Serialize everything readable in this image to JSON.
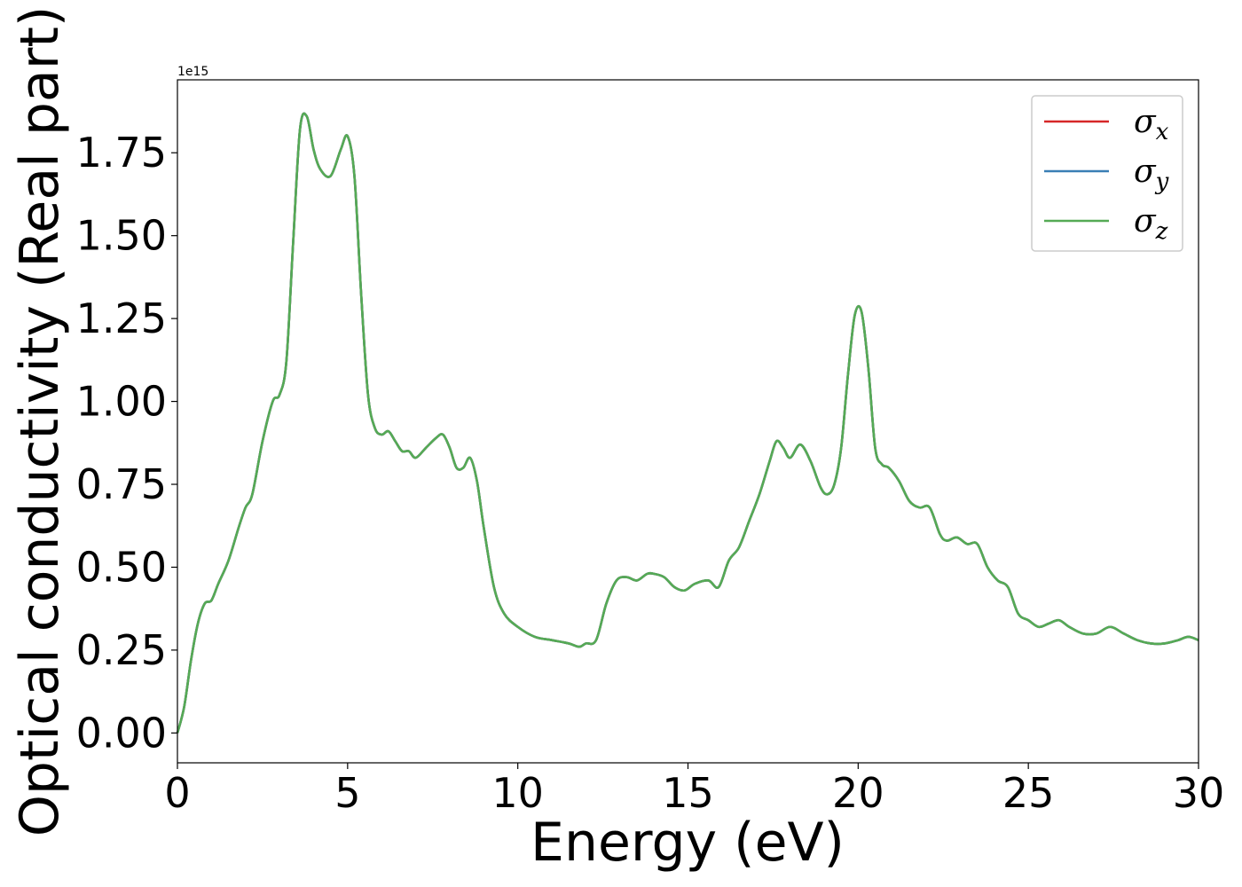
{
  "chart_data": {
    "type": "line",
    "title": "",
    "xlabel": "Energy (eV)",
    "ylabel": "Optical conductivity (Real part)",
    "y_offset_text": "1e15",
    "xlim": [
      0,
      30
    ],
    "ylim": [
      -0.09,
      1.97
    ],
    "xticks": [
      0,
      5,
      10,
      15,
      20,
      25,
      30
    ],
    "xtick_labels": [
      "0",
      "5",
      "10",
      "15",
      "20",
      "25",
      "30"
    ],
    "yticks": [
      0.0,
      0.25,
      0.5,
      0.75,
      1.0,
      1.25,
      1.5,
      1.75
    ],
    "ytick_labels": [
      "0.00",
      "0.25",
      "0.50",
      "0.75",
      "1.00",
      "1.25",
      "1.50",
      "1.75"
    ],
    "grid": false,
    "legend_position": "top-right",
    "x": [
      0,
      0.2,
      0.4,
      0.6,
      0.8,
      1.0,
      1.2,
      1.5,
      1.8,
      2.0,
      2.2,
      2.5,
      2.8,
      3.0,
      3.2,
      3.4,
      3.6,
      3.8,
      4.0,
      4.2,
      4.5,
      4.8,
      5.0,
      5.2,
      5.4,
      5.6,
      5.8,
      6.0,
      6.2,
      6.4,
      6.6,
      6.8,
      7.0,
      7.3,
      7.6,
      7.8,
      8.0,
      8.2,
      8.4,
      8.6,
      8.8,
      9.0,
      9.3,
      9.6,
      10.0,
      10.5,
      11.0,
      11.5,
      11.8,
      12.0,
      12.3,
      12.6,
      12.9,
      13.2,
      13.5,
      13.8,
      14.0,
      14.3,
      14.6,
      14.9,
      15.2,
      15.6,
      15.9,
      16.2,
      16.5,
      16.8,
      17.1,
      17.4,
      17.6,
      17.8,
      18.0,
      18.3,
      18.6,
      18.9,
      19.1,
      19.3,
      19.5,
      19.7,
      19.9,
      20.1,
      20.3,
      20.5,
      20.7,
      20.9,
      21.2,
      21.5,
      21.8,
      22.1,
      22.4,
      22.6,
      22.9,
      23.2,
      23.5,
      23.8,
      24.1,
      24.4,
      24.7,
      25.0,
      25.3,
      25.6,
      25.9,
      26.2,
      26.6,
      27.0,
      27.4,
      27.8,
      28.2,
      28.6,
      29.0,
      29.4,
      29.7,
      30.0
    ],
    "series": [
      {
        "name": "σ_x",
        "symbol": "σ",
        "subscript": "x",
        "color": "#d62728",
        "values": [
          0.0,
          0.08,
          0.22,
          0.33,
          0.39,
          0.4,
          0.45,
          0.52,
          0.62,
          0.68,
          0.72,
          0.88,
          1.0,
          1.02,
          1.12,
          1.48,
          1.82,
          1.86,
          1.76,
          1.7,
          1.68,
          1.76,
          1.8,
          1.68,
          1.32,
          1.02,
          0.92,
          0.9,
          0.91,
          0.88,
          0.85,
          0.85,
          0.83,
          0.86,
          0.89,
          0.9,
          0.86,
          0.8,
          0.8,
          0.83,
          0.76,
          0.62,
          0.44,
          0.36,
          0.32,
          0.29,
          0.28,
          0.27,
          0.26,
          0.27,
          0.28,
          0.39,
          0.46,
          0.47,
          0.46,
          0.48,
          0.48,
          0.47,
          0.44,
          0.43,
          0.45,
          0.46,
          0.44,
          0.52,
          0.56,
          0.64,
          0.72,
          0.82,
          0.88,
          0.86,
          0.83,
          0.87,
          0.82,
          0.74,
          0.72,
          0.75,
          0.86,
          1.08,
          1.26,
          1.27,
          1.1,
          0.86,
          0.81,
          0.8,
          0.76,
          0.7,
          0.68,
          0.68,
          0.6,
          0.58,
          0.59,
          0.57,
          0.57,
          0.5,
          0.46,
          0.44,
          0.36,
          0.34,
          0.32,
          0.33,
          0.34,
          0.32,
          0.3,
          0.3,
          0.32,
          0.3,
          0.28,
          0.27,
          0.27,
          0.28,
          0.29,
          0.28
        ]
      },
      {
        "name": "σ_y",
        "symbol": "σ",
        "subscript": "y",
        "color": "#3a7fb5",
        "values": [
          0.0,
          0.08,
          0.22,
          0.33,
          0.39,
          0.4,
          0.45,
          0.52,
          0.62,
          0.68,
          0.72,
          0.88,
          1.0,
          1.02,
          1.12,
          1.48,
          1.82,
          1.86,
          1.76,
          1.7,
          1.68,
          1.76,
          1.8,
          1.68,
          1.32,
          1.02,
          0.92,
          0.9,
          0.91,
          0.88,
          0.85,
          0.85,
          0.83,
          0.86,
          0.89,
          0.9,
          0.86,
          0.8,
          0.8,
          0.83,
          0.76,
          0.62,
          0.44,
          0.36,
          0.32,
          0.29,
          0.28,
          0.27,
          0.26,
          0.27,
          0.28,
          0.39,
          0.46,
          0.47,
          0.46,
          0.48,
          0.48,
          0.47,
          0.44,
          0.43,
          0.45,
          0.46,
          0.44,
          0.52,
          0.56,
          0.64,
          0.72,
          0.82,
          0.88,
          0.86,
          0.83,
          0.87,
          0.82,
          0.74,
          0.72,
          0.75,
          0.86,
          1.08,
          1.26,
          1.27,
          1.1,
          0.86,
          0.81,
          0.8,
          0.76,
          0.7,
          0.68,
          0.68,
          0.6,
          0.58,
          0.59,
          0.57,
          0.57,
          0.5,
          0.46,
          0.44,
          0.36,
          0.34,
          0.32,
          0.33,
          0.34,
          0.32,
          0.3,
          0.3,
          0.32,
          0.3,
          0.28,
          0.27,
          0.27,
          0.28,
          0.29,
          0.28
        ]
      },
      {
        "name": "σ_z",
        "symbol": "σ",
        "subscript": "z",
        "color": "#55aa55",
        "values": [
          0.0,
          0.08,
          0.22,
          0.33,
          0.39,
          0.4,
          0.45,
          0.52,
          0.62,
          0.68,
          0.72,
          0.88,
          1.0,
          1.02,
          1.12,
          1.48,
          1.82,
          1.86,
          1.76,
          1.7,
          1.68,
          1.76,
          1.8,
          1.68,
          1.32,
          1.02,
          0.92,
          0.9,
          0.91,
          0.88,
          0.85,
          0.85,
          0.83,
          0.86,
          0.89,
          0.9,
          0.86,
          0.8,
          0.8,
          0.83,
          0.76,
          0.62,
          0.44,
          0.36,
          0.32,
          0.29,
          0.28,
          0.27,
          0.26,
          0.27,
          0.28,
          0.39,
          0.46,
          0.47,
          0.46,
          0.48,
          0.48,
          0.47,
          0.44,
          0.43,
          0.45,
          0.46,
          0.44,
          0.52,
          0.56,
          0.64,
          0.72,
          0.82,
          0.88,
          0.86,
          0.83,
          0.87,
          0.82,
          0.74,
          0.72,
          0.75,
          0.86,
          1.08,
          1.26,
          1.27,
          1.1,
          0.86,
          0.81,
          0.8,
          0.76,
          0.7,
          0.68,
          0.68,
          0.6,
          0.58,
          0.59,
          0.57,
          0.57,
          0.5,
          0.46,
          0.44,
          0.36,
          0.34,
          0.32,
          0.33,
          0.34,
          0.32,
          0.3,
          0.3,
          0.32,
          0.3,
          0.28,
          0.27,
          0.27,
          0.28,
          0.29,
          0.28
        ]
      }
    ]
  }
}
